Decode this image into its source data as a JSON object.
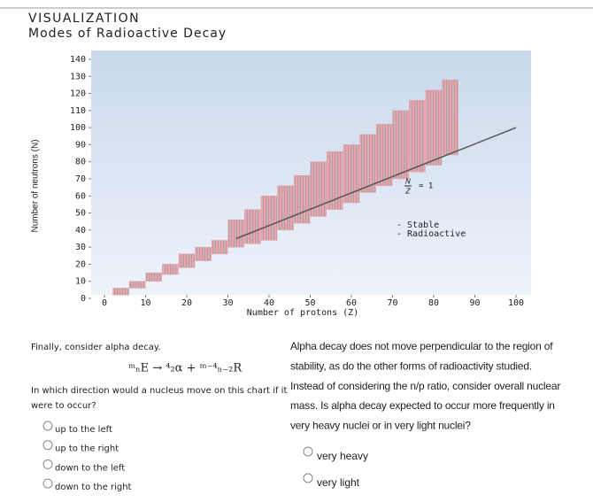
{
  "header": {
    "title": "VISUALIZATION",
    "subtitle": "Modes of Radioactive Decay"
  },
  "chart_data": {
    "type": "band",
    "xlabel": "Number of protons (Z)",
    "ylabel": "Number of neutrons (N)",
    "xlim": [
      0,
      100
    ],
    "ylim": [
      0,
      140
    ],
    "xticks": [
      0,
      10,
      20,
      30,
      40,
      50,
      60,
      70,
      80,
      90,
      100
    ],
    "yticks": [
      0,
      10,
      20,
      30,
      40,
      50,
      60,
      70,
      80,
      90,
      100,
      110,
      120,
      130,
      140
    ],
    "series": [
      {
        "name": "Stable",
        "color": "#e8a0a8",
        "x": [
          4,
          8,
          12,
          16,
          20,
          24,
          28,
          32,
          36,
          40,
          44,
          48,
          52,
          56,
          60,
          64,
          68,
          72,
          76,
          80,
          84
        ],
        "low": [
          2,
          6,
          10,
          14,
          18,
          22,
          26,
          30,
          32,
          34,
          40,
          44,
          48,
          52,
          56,
          62,
          66,
          70,
          74,
          78,
          84
        ],
        "high": [
          6,
          10,
          15,
          20,
          26,
          30,
          34,
          46,
          52,
          60,
          66,
          72,
          80,
          86,
          90,
          96,
          102,
          110,
          116,
          122,
          128
        ]
      }
    ],
    "legend_extra": "Radioactive",
    "reference_line": {
      "x": [
        32,
        100
      ],
      "y": [
        35,
        100
      ],
      "label_top": "N",
      "label_bottom": "Z",
      "label_right": "= 1",
      "color": "#555555"
    }
  },
  "left": {
    "intro": "Finally, consider alpha decay.",
    "equation": "ᵐₙE → ⁴₂α + ᵐ⁻⁴ₙ₋₂R",
    "question": [
      "In which direction would a nucleus move on this chart if it",
      "were to occur?"
    ],
    "options": [
      "up to the left",
      "up to the right",
      "down to the left",
      "down to the right"
    ]
  },
  "right": {
    "question": [
      "Alpha decay does not move perpendicular to the region of",
      "stability, as do the other forms of radioactivity studied.",
      "Instead of considering the n/p ratio, consider overall nuclear",
      "mass. Is alpha decay expected to occur more frequently in",
      "very heavy nuclei or in very light nuclei?"
    ],
    "options": [
      "very heavy",
      "very light"
    ]
  }
}
